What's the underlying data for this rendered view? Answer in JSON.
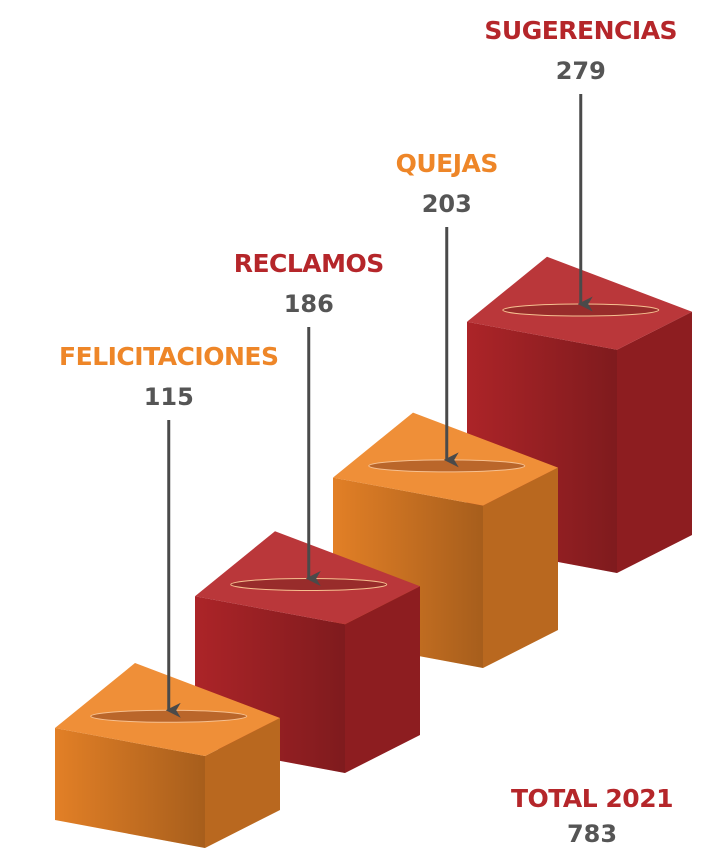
{
  "chart_data": {
    "type": "bar",
    "categories": [
      "FELICITACIONES",
      "RECLAMOS",
      "QUEJAS",
      "SUGERENCIAS"
    ],
    "values": [
      115,
      186,
      203,
      279
    ],
    "colors": [
      "#ee8628",
      "#b5262a",
      "#ee8628",
      "#b5262a"
    ],
    "total_label": "TOTAL 2021",
    "total": 783
  }
}
